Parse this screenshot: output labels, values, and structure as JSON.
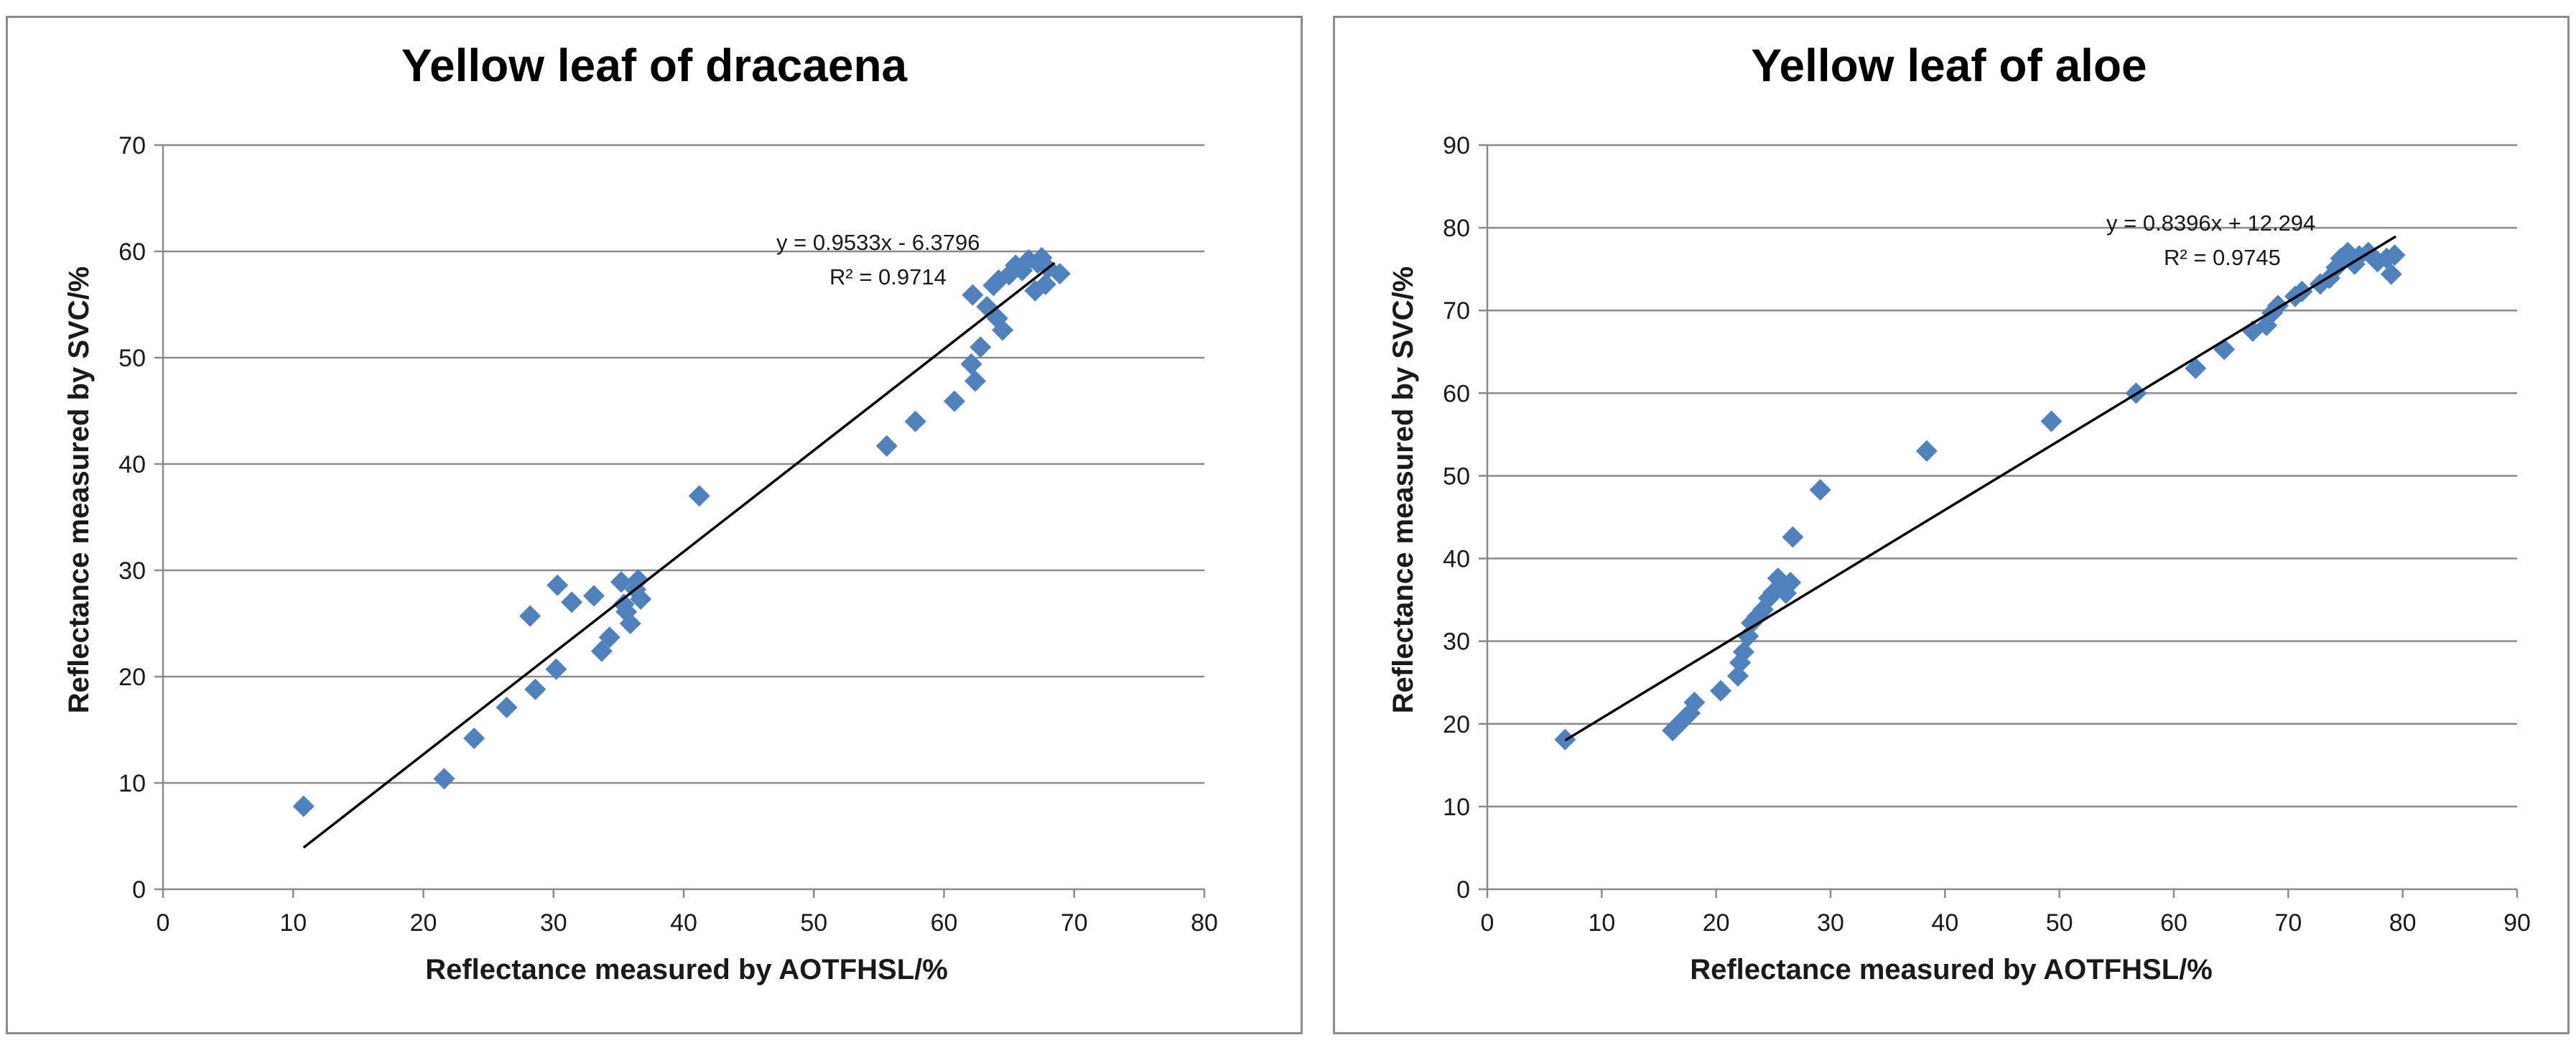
{
  "chart_data": [
    {
      "type": "scatter",
      "title": "Yellow leaf of dracaena",
      "xlabel": "Reflectance measured by AOTFHSL/%",
      "ylabel": "Reflectance measured by SVC/%",
      "xlim": [
        0,
        80
      ],
      "ylim": [
        0,
        70
      ],
      "xticks": [
        0,
        10,
        20,
        30,
        40,
        50,
        60,
        70,
        80
      ],
      "yticks": [
        0,
        10,
        20,
        30,
        40,
        50,
        60,
        70
      ],
      "grid": "horizontal",
      "marker_color": "#4f81bd",
      "trendline": {
        "slope": 0.9533,
        "intercept": -6.3796,
        "x_range": [
          10.8,
          68.5
        ]
      },
      "annotations": {
        "equation": "y = 0.9533x - 6.3796",
        "r2": "R² = 0.9714"
      },
      "series": [
        {
          "x": [
            10.8,
            21.6,
            23.9,
            26.4,
            28.2,
            28.6,
            30.2,
            30.3,
            31.4,
            33.1,
            33.7,
            34.3,
            35.2,
            35.4,
            35.6,
            35.9,
            36.3,
            36.7,
            36.5,
            41.2,
            55.6,
            57.8,
            60.8,
            62.1,
            62.2,
            62.4,
            62.8,
            63.3,
            63.8,
            64.1,
            64.2,
            64.5,
            65.0,
            65.5,
            66.0,
            66.5,
            67.0,
            67.2,
            67.5,
            67.8,
            68.0,
            68.9
          ],
          "y": [
            7.8,
            10.4,
            14.2,
            17.1,
            25.7,
            18.8,
            20.7,
            28.6,
            27.0,
            27.6,
            22.4,
            23.7,
            28.9,
            26.8,
            26.1,
            25.0,
            28.2,
            27.3,
            29.1,
            37.0,
            41.7,
            44.0,
            45.9,
            49.4,
            55.9,
            47.8,
            51.0,
            54.8,
            56.8,
            53.7,
            57.3,
            52.6,
            57.8,
            58.7,
            58.2,
            59.2,
            56.3,
            58.9,
            59.4,
            56.9,
            58.4,
            57.9
          ]
        }
      ]
    },
    {
      "type": "scatter",
      "title": "Yellow leaf of aloe",
      "xlabel": "Reflectance measured by AOTFHSL/%",
      "ylabel": "Reflectance measured by SVC/%",
      "xlim": [
        0,
        90
      ],
      "ylim": [
        0,
        90
      ],
      "xticks": [
        0,
        10,
        20,
        30,
        40,
        50,
        60,
        70,
        80,
        90
      ],
      "yticks": [
        0,
        10,
        20,
        30,
        40,
        50,
        60,
        70,
        80,
        90
      ],
      "grid": "horizontal",
      "marker_color": "#4f81bd",
      "trendline": {
        "slope": 0.8396,
        "intercept": 12.294,
        "x_range": [
          6.8,
          79.4
        ]
      },
      "annotations": {
        "equation": "y = 0.8396x + 12.294",
        "r2": "R² = 0.9745"
      },
      "series": [
        {
          "x": [
            6.8,
            16.2,
            16.7,
            17.2,
            17.7,
            18.1,
            20.4,
            21.9,
            22.1,
            22.4,
            22.8,
            23.1,
            23.6,
            24.1,
            24.6,
            25.0,
            25.4,
            25.8,
            26.1,
            26.5,
            26.7,
            29.1,
            38.4,
            49.3,
            56.7,
            61.9,
            64.4,
            66.9,
            68.1,
            68.6,
            69.1,
            70.6,
            71.2,
            72.8,
            73.6,
            74.2,
            74.6,
            75.2,
            75.8,
            76.2,
            77.0,
            77.8,
            78.6,
            79.0,
            79.3
          ],
          "y": [
            18.1,
            19.2,
            19.9,
            20.6,
            21.3,
            22.6,
            24.0,
            25.8,
            27.4,
            28.7,
            30.6,
            32.2,
            33.0,
            33.8,
            35.2,
            35.9,
            37.6,
            36.5,
            35.8,
            37.1,
            42.6,
            48.3,
            53.0,
            56.6,
            60.0,
            63.0,
            65.3,
            67.5,
            68.2,
            69.7,
            70.6,
            71.7,
            72.3,
            73.2,
            73.9,
            75.2,
            76.3,
            77.0,
            75.6,
            76.6,
            77.0,
            75.9,
            76.3,
            74.4,
            76.7
          ]
        }
      ]
    }
  ]
}
